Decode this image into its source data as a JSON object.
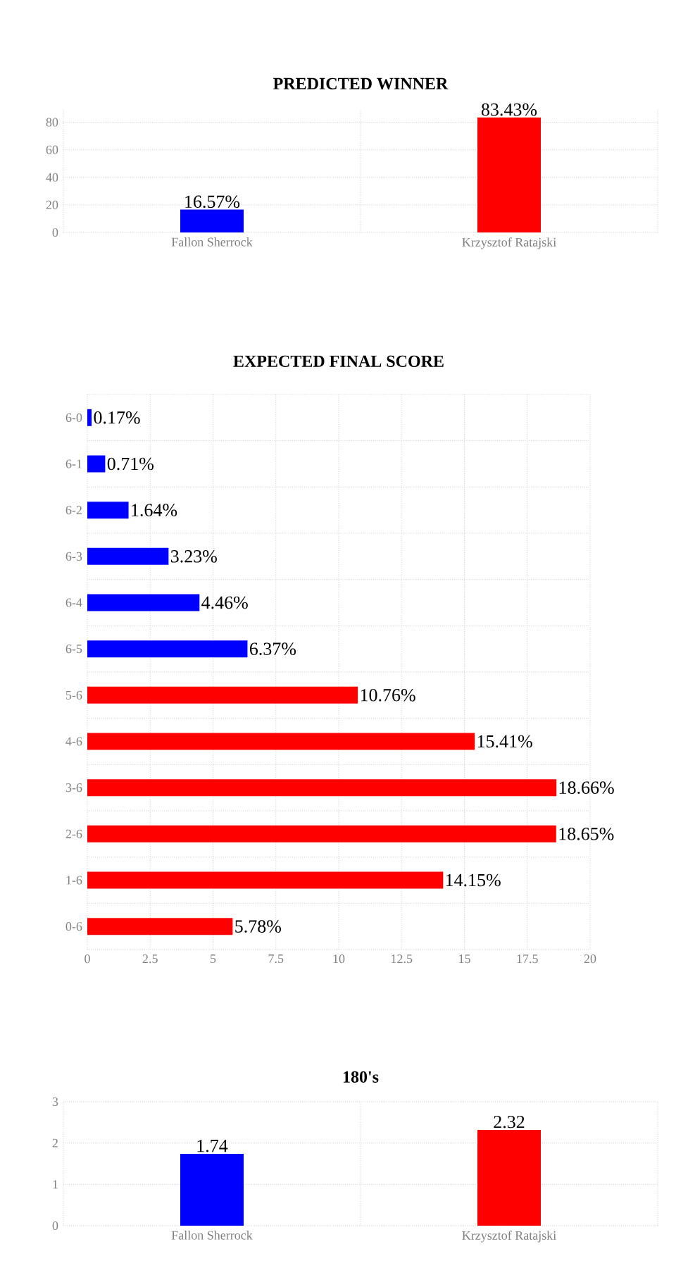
{
  "chart_data": [
    {
      "type": "bar",
      "title": "PREDICTED WINNER",
      "categories": [
        "Fallon Sherrock",
        "Krzysztof Ratajski"
      ],
      "values": [
        16.57,
        83.43
      ],
      "colors": [
        "#0000ff",
        "#ff0000"
      ],
      "value_labels": [
        "16.57%",
        "83.43%"
      ],
      "ylim": [
        0,
        90
      ],
      "yticks": [
        0,
        20,
        40,
        60,
        80
      ],
      "grid": true
    },
    {
      "type": "bar",
      "orientation": "horizontal",
      "title": "EXPECTED FINAL SCORE",
      "categories": [
        "6-0",
        "6-1",
        "6-2",
        "6-3",
        "6-4",
        "6-5",
        "5-6",
        "4-6",
        "3-6",
        "2-6",
        "1-6",
        "0-6"
      ],
      "values": [
        0.17,
        0.71,
        1.64,
        3.23,
        4.46,
        6.37,
        10.76,
        15.41,
        18.66,
        18.65,
        14.15,
        5.78
      ],
      "colors": [
        "#0000ff",
        "#0000ff",
        "#0000ff",
        "#0000ff",
        "#0000ff",
        "#0000ff",
        "#ff0000",
        "#ff0000",
        "#ff0000",
        "#ff0000",
        "#ff0000",
        "#ff0000"
      ],
      "value_labels": [
        "0.17%",
        "0.71%",
        "1.64%",
        "3.23%",
        "4.46%",
        "6.37%",
        "10.76%",
        "15.41%",
        "18.66%",
        "18.65%",
        "14.15%",
        "5.78%"
      ],
      "xlim": [
        0,
        20
      ],
      "xticks": [
        0,
        2.5,
        5,
        7.5,
        10,
        12.5,
        15,
        17.5,
        20
      ],
      "grid": true
    },
    {
      "type": "bar",
      "title": "180's",
      "categories": [
        "Fallon Sherrock",
        "Krzysztof Ratajski"
      ],
      "values": [
        1.74,
        2.32
      ],
      "colors": [
        "#0000ff",
        "#ff0000"
      ],
      "data_labels": true,
      "ylim": [
        0,
        3
      ],
      "yticks": [
        0,
        1,
        2,
        3
      ],
      "grid": true
    }
  ]
}
